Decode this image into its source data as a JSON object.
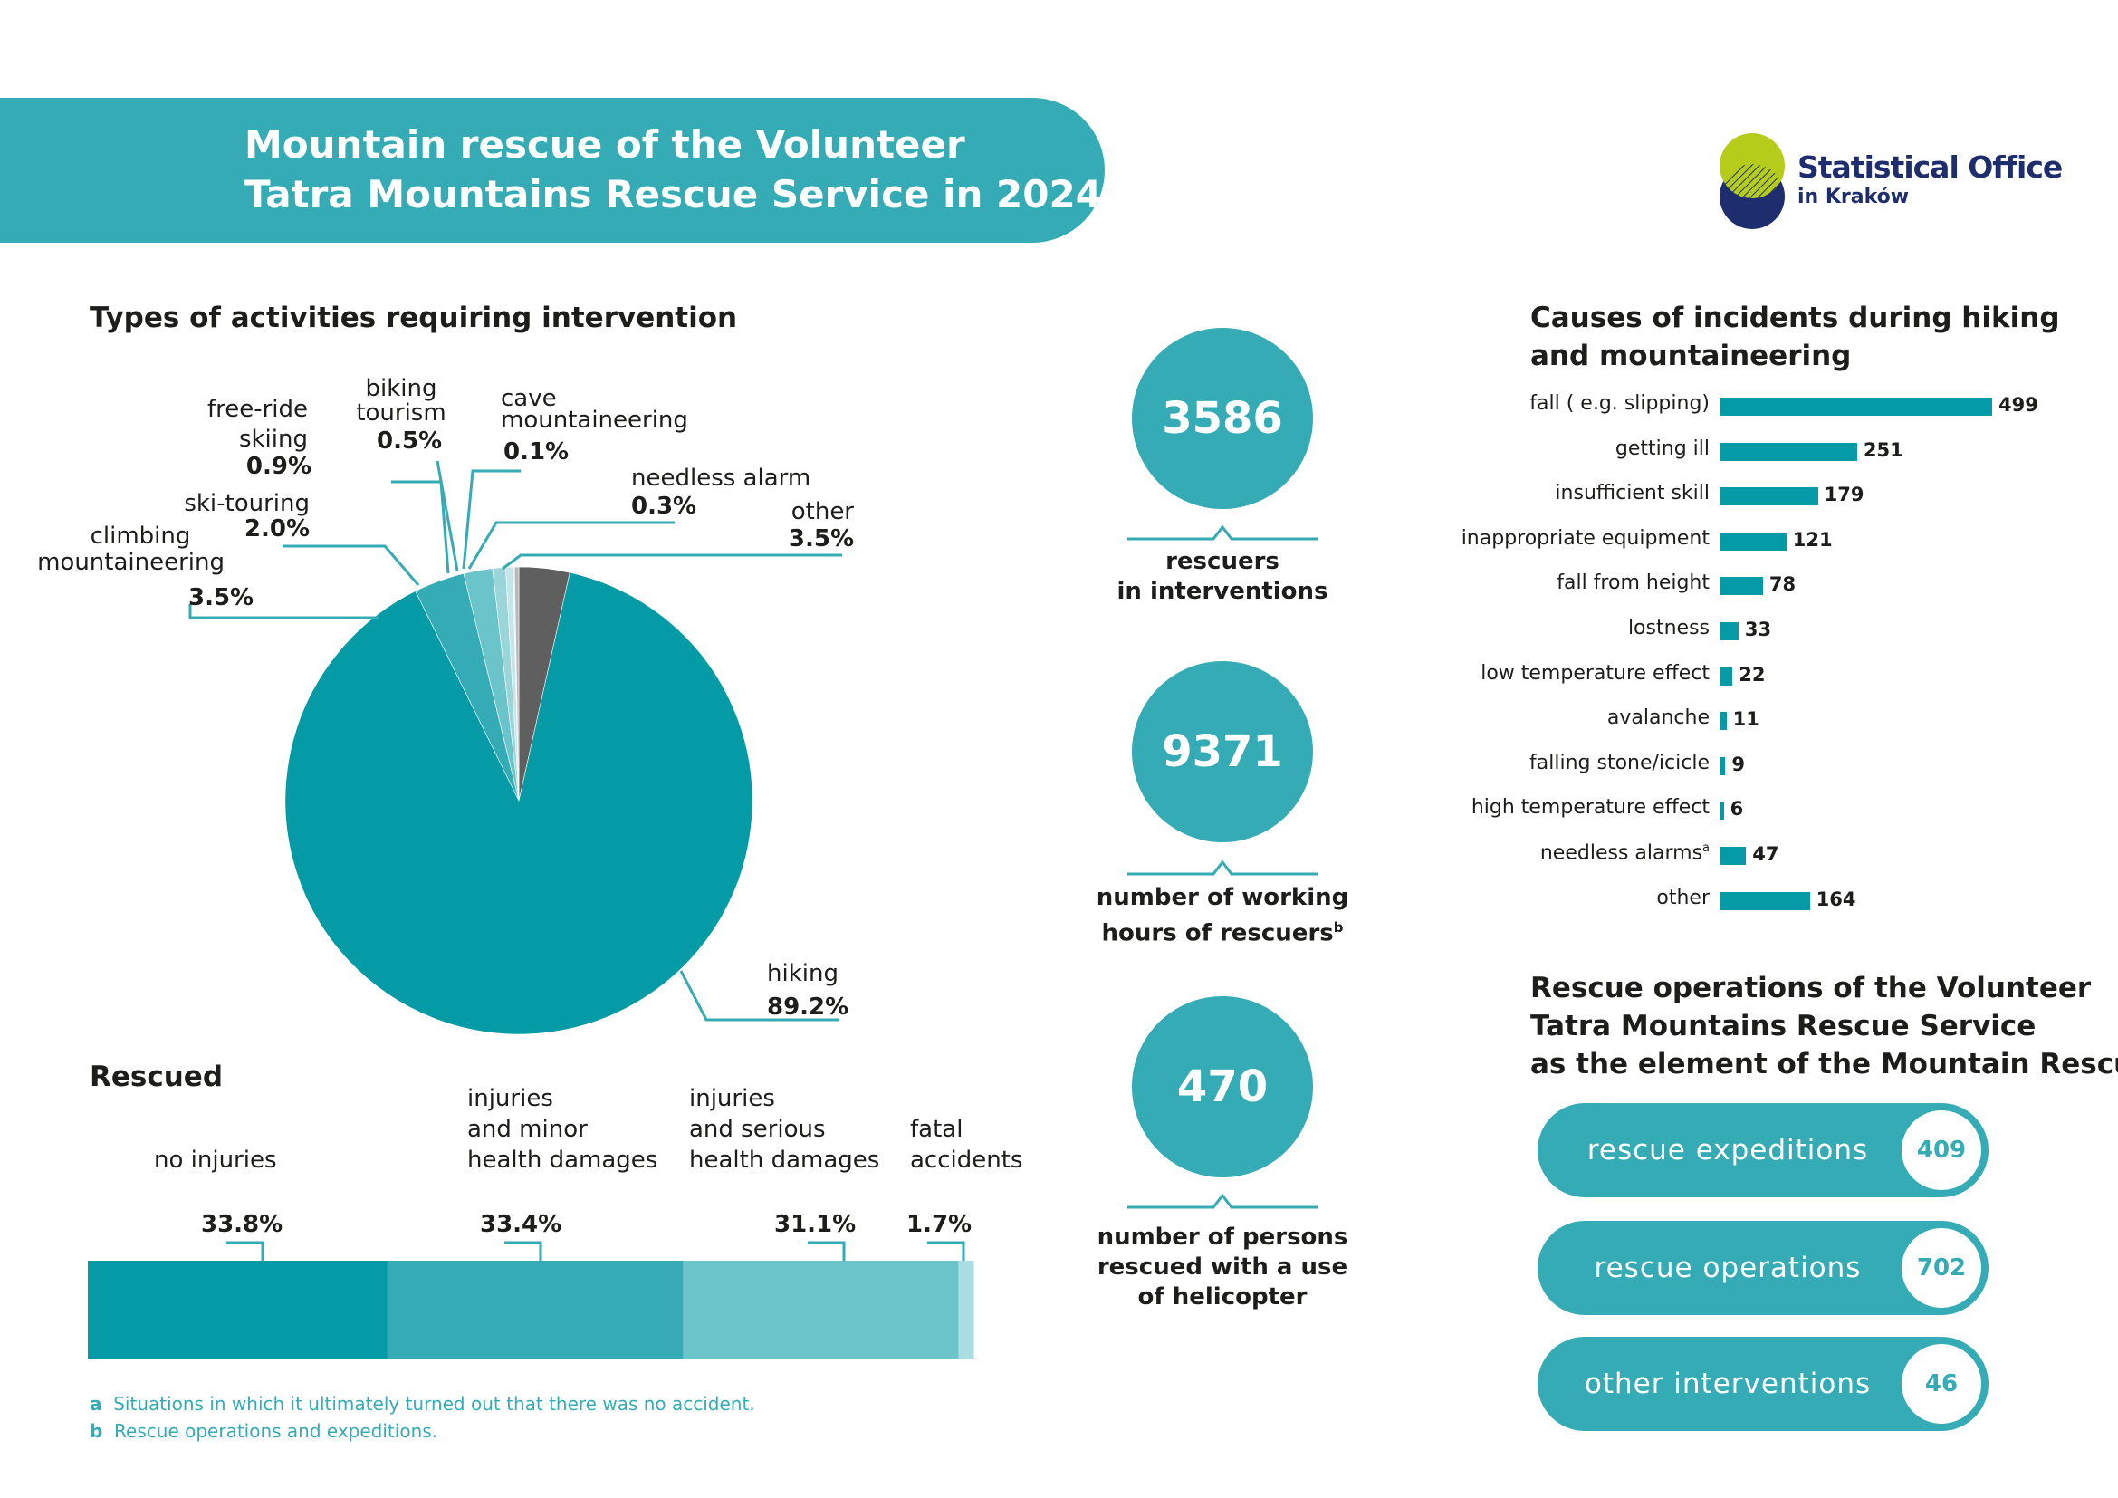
{
  "header": {
    "title_line1": "Mountain rescue of the Volunteer",
    "title_line2": "Tatra Mountains Rescue Service in 2024",
    "logo_line1": "Statistical Office",
    "logo_line2": "in Kraków"
  },
  "colors": {
    "teal": "#35abb5",
    "teal_dark": "#049aa6",
    "teal_light": "#6cc4cb",
    "navy": "#1d2d6e",
    "lime": "#b5cd1a",
    "other_gray": "#5f5f5f"
  },
  "activities": {
    "title": "Types of activities requiring intervention"
  },
  "rescued": {
    "title": "Rescued"
  },
  "causes": {
    "title_line1": "Causes of incidents during hiking",
    "title_line2": "and mountaineering"
  },
  "stats": [
    {
      "value": "3586",
      "label_line1": "rescuers",
      "label_line2": "in interventions",
      "label_line3": ""
    },
    {
      "value": "9371",
      "label_line1": "number of working",
      "label_line2": "hours of rescuers",
      "sup": "b",
      "label_line3": ""
    },
    {
      "value": "470",
      "label_line1": "number of persons",
      "label_line2": "rescued with a use",
      "label_line3": "of helicopter"
    }
  ],
  "operations": {
    "title_line1": "Rescue operations of the Volunteer",
    "title_line2": "Tatra Mountains Rescue Service",
    "title_line3": "as the element of the Mountain Rescue",
    "items": [
      {
        "label": "rescue expeditions",
        "value": "409"
      },
      {
        "label": "rescue operations",
        "value": "702"
      },
      {
        "label": "other interventions",
        "value": "46"
      }
    ]
  },
  "footnotes": [
    {
      "mark": "a",
      "text": "Situations in which it ultimately turned out that there was no accident."
    },
    {
      "mark": "b",
      "text": "Rescue operations and expeditions."
    }
  ],
  "chart_data": [
    {
      "type": "pie",
      "title": "Types of activities requiring intervention",
      "slices": [
        {
          "label": "hiking",
          "value": 89.2,
          "display": "89.2%",
          "color": "#049aa6"
        },
        {
          "label": "climbing mountaineering",
          "value": 3.5,
          "display": "3.5%",
          "color": "#35abb5"
        },
        {
          "label": "ski-touring",
          "value": 2.0,
          "display": "2.0%",
          "color": "#6cc4cb"
        },
        {
          "label": "free-ride skiing",
          "value": 0.9,
          "display": "0.9%",
          "color": "#9ad5da"
        },
        {
          "label": "biking tourism",
          "value": 0.5,
          "display": "0.5%",
          "color": "#c4e6e9"
        },
        {
          "label": "cave mountaineering",
          "value": 0.1,
          "display": "0.1%",
          "color": "#e2f2f3"
        },
        {
          "label": "needless alarm",
          "value": 0.3,
          "display": "0.3%",
          "color": "#b8b8b8"
        },
        {
          "label": "other",
          "value": 3.5,
          "display": "3.5%",
          "color": "#5f5f5f"
        }
      ],
      "label_text": {
        "free_ride_1": "free-ride",
        "free_ride_2": "skiing",
        "biking_1": "biking",
        "biking_2": "tourism",
        "cave_1": "cave",
        "cave_2": "mountaineering",
        "climbing_1": "climbing",
        "climbing_2": "mountaineering"
      }
    },
    {
      "type": "bar",
      "title": "Rescued",
      "orientation": "stacked-horizontal",
      "categories": [
        "no injuries",
        "injuries and minor health damages",
        "injuries and serious health damages",
        "fatal accidents"
      ],
      "values": [
        33.8,
        33.4,
        31.1,
        1.7
      ],
      "display": [
        "33.8%",
        "33.4%",
        "31.1%",
        "1.7%"
      ],
      "label_lines": [
        [
          "no injuries"
        ],
        [
          "injuries",
          "and minor",
          "health damages"
        ],
        [
          "injuries",
          "and serious",
          "health damages"
        ],
        [
          "fatal",
          "accidents"
        ]
      ],
      "colors": [
        "#049aa6",
        "#35abb5",
        "#6cc4cb",
        "#a9dde1"
      ]
    },
    {
      "type": "bar",
      "title": "Causes of incidents during hiking and mountaineering",
      "orientation": "horizontal",
      "categories": [
        "fall ( e.g. slipping)",
        "getting ill",
        "insufficient skill",
        "inappropriate equipment",
        "fall from height",
        "lostness",
        "low temperature effect",
        "avalanche",
        "falling stone/icicle",
        "high temperature effect",
        "needless alarms",
        "other"
      ],
      "category_sup": [
        "",
        "",
        "",
        "",
        "",
        "",
        "",
        "",
        "",
        "",
        "a",
        ""
      ],
      "values": [
        499,
        251,
        179,
        121,
        78,
        33,
        22,
        11,
        9,
        6,
        47,
        164
      ],
      "color": "#049aa6"
    }
  ]
}
